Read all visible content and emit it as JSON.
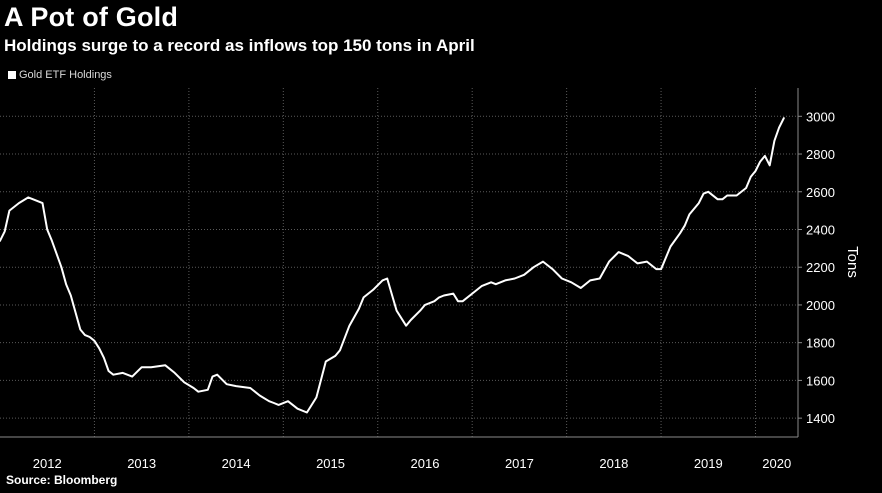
{
  "header": {
    "title": "A Pot of Gold",
    "subtitle": "Holdings surge to a record as inflows top 150 tons in April"
  },
  "legend": {
    "label": "Gold ETF Holdings"
  },
  "footer": {
    "source": "Source: Bloomberg"
  },
  "colors": {
    "background": "#000000",
    "line": "#ffffff",
    "grid": "#5a5a5a",
    "axis": "#8a8a8a"
  },
  "chart_data": {
    "type": "line",
    "title": "A Pot of Gold",
    "subtitle": "Holdings surge to a record as inflows top 150 tons in April",
    "ylabel": "Tons",
    "xlabel": "",
    "ylim": [
      1300,
      3150
    ],
    "xlim": [
      2012.0,
      2020.45
    ],
    "yticks": [
      1400,
      1600,
      1800,
      2000,
      2200,
      2400,
      2600,
      2800,
      3000
    ],
    "xtick_labels": [
      "2012",
      "2013",
      "2014",
      "2015",
      "2016",
      "2017",
      "2018",
      "2019",
      "2020"
    ],
    "y_axis_position": "right",
    "grid": true,
    "legend_position": "top-left",
    "series": [
      {
        "name": "Gold ETF Holdings",
        "x": [
          2012.0,
          2012.05,
          2012.1,
          2012.2,
          2012.3,
          2012.35,
          2012.45,
          2012.5,
          2012.55,
          2012.65,
          2012.7,
          2012.75,
          2012.85,
          2012.9,
          2012.95,
          2013.0,
          2013.05,
          2013.1,
          2013.15,
          2013.2,
          2013.3,
          2013.4,
          2013.5,
          2013.6,
          2013.75,
          2013.85,
          2013.95,
          2014.05,
          2014.1,
          2014.2,
          2014.25,
          2014.3,
          2014.4,
          2014.5,
          2014.65,
          2014.75,
          2014.85,
          2014.9,
          2014.95,
          2015.05,
          2015.15,
          2015.25,
          2015.35,
          2015.45,
          2015.55,
          2015.6,
          2015.7,
          2015.8,
          2015.85,
          2015.9,
          2015.95,
          2016.05,
          2016.1,
          2016.2,
          2016.3,
          2016.35,
          2016.45,
          2016.5,
          2016.6,
          2016.65,
          2016.7,
          2016.8,
          2016.85,
          2016.9,
          2017.0,
          2017.1,
          2017.2,
          2017.25,
          2017.35,
          2017.45,
          2017.55,
          2017.65,
          2017.75,
          2017.85,
          2017.95,
          2018.05,
          2018.15,
          2018.25,
          2018.35,
          2018.45,
          2018.55,
          2018.65,
          2018.75,
          2018.85,
          2018.95,
          2019.0,
          2019.1,
          2019.2,
          2019.25,
          2019.3,
          2019.4,
          2019.45,
          2019.5,
          2019.6,
          2019.65,
          2019.7,
          2019.8,
          2019.9,
          2019.95,
          2020.0,
          2020.05,
          2020.1,
          2020.15,
          2020.2,
          2020.25,
          2020.3
        ],
        "y": [
          2340,
          2390,
          2500,
          2540,
          2570,
          2560,
          2540,
          2400,
          2340,
          2200,
          2110,
          2050,
          1870,
          1840,
          1830,
          1810,
          1770,
          1720,
          1650,
          1630,
          1640,
          1620,
          1670,
          1670,
          1680,
          1640,
          1590,
          1560,
          1540,
          1550,
          1620,
          1630,
          1580,
          1570,
          1560,
          1520,
          1490,
          1480,
          1470,
          1490,
          1450,
          1430,
          1510,
          1700,
          1730,
          1760,
          1890,
          1980,
          2040,
          2060,
          2080,
          2130,
          2140,
          1970,
          1890,
          1920,
          1970,
          2000,
          2020,
          2040,
          2050,
          2060,
          2020,
          2020,
          2060,
          2100,
          2120,
          2110,
          2130,
          2140,
          2160,
          2200,
          2230,
          2190,
          2140,
          2120,
          2090,
          2130,
          2140,
          2230,
          2280,
          2260,
          2220,
          2230,
          2190,
          2190,
          2310,
          2380,
          2420,
          2480,
          2540,
          2590,
          2600,
          2560,
          2560,
          2580,
          2580,
          2620,
          2680,
          2710,
          2760,
          2790,
          2740,
          2870,
          2940,
          2990
        ]
      }
    ]
  }
}
